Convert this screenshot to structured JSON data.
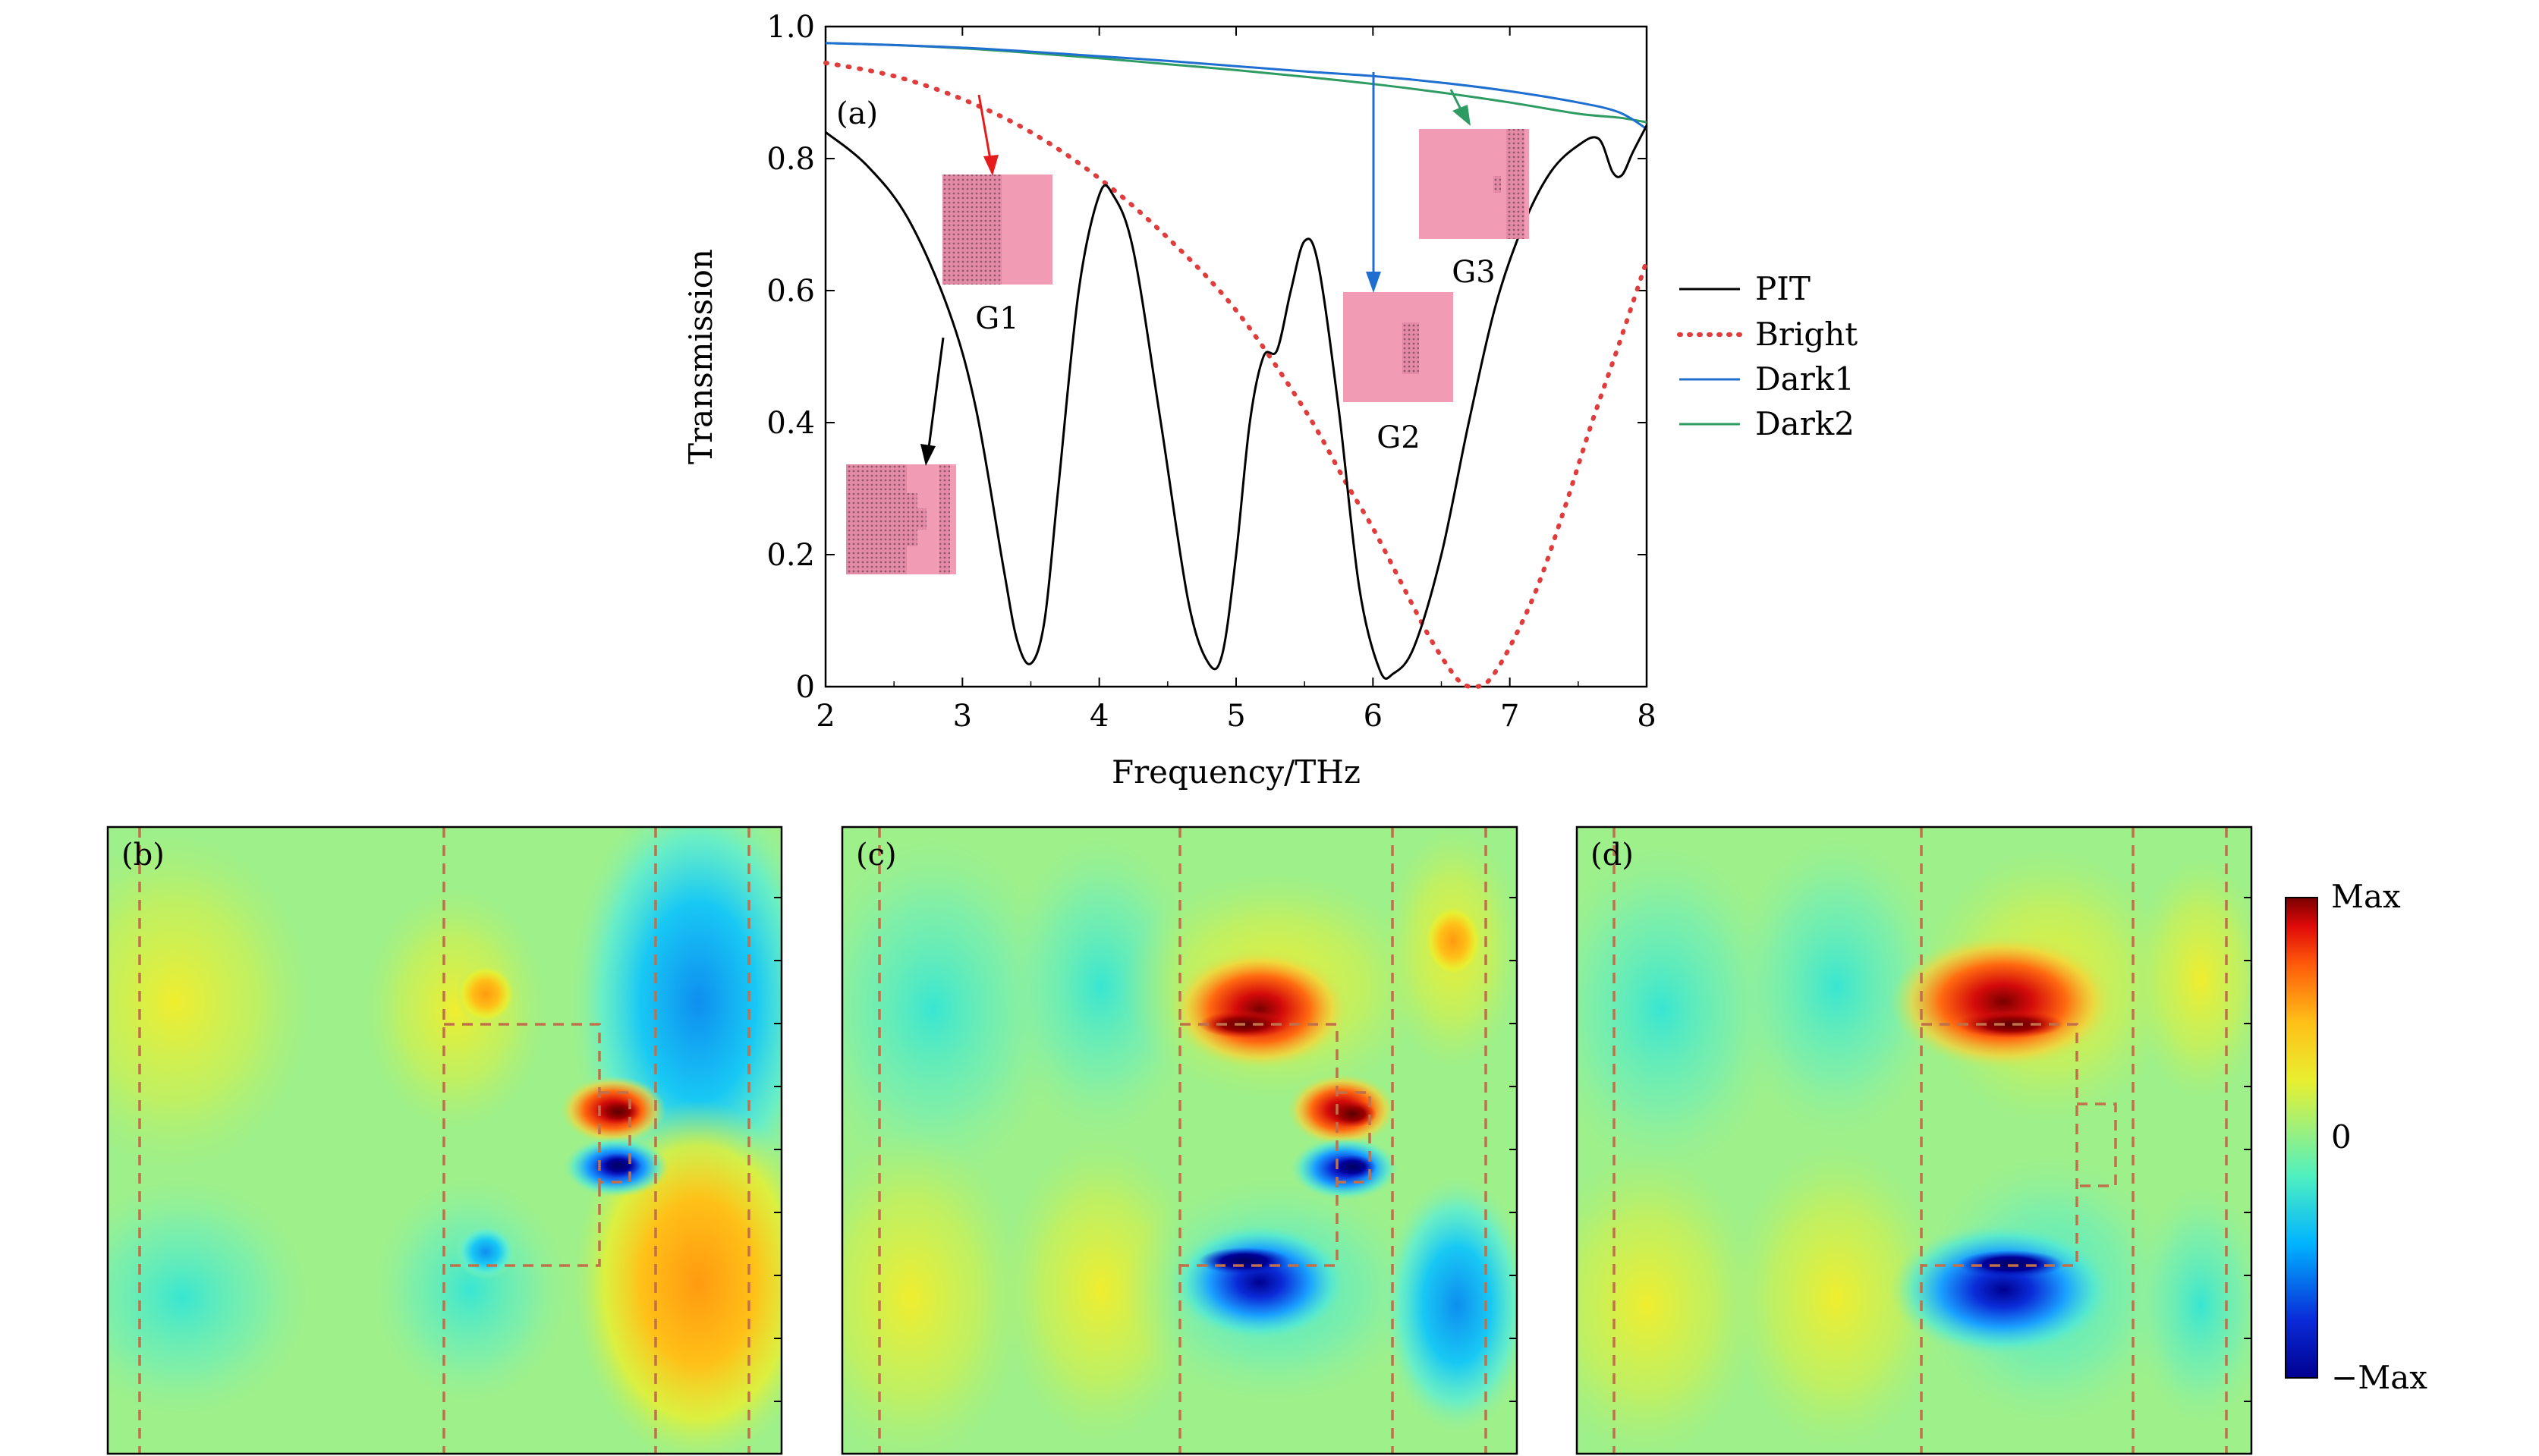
{
  "chart_data": [
    {
      "type": "line",
      "panel_label": "(a)",
      "xlabel": "Frequency/THz",
      "ylabel": "Transmission",
      "xlim": [
        2,
        8
      ],
      "ylim": [
        0,
        1.0
      ],
      "xticks": [
        2,
        3,
        4,
        5,
        6,
        7,
        8
      ],
      "yticks": [
        0,
        0.2,
        0.4,
        0.6,
        0.8,
        1.0
      ],
      "ytick_labels": [
        "0",
        "0.2",
        "0.4",
        "0.6",
        "0.8",
        "1.0"
      ],
      "legend_position": "right-outside",
      "series": [
        {
          "name": "PIT",
          "color": "#000000",
          "style": "solid",
          "points": [
            [
              2.0,
              0.84
            ],
            [
              2.3,
              0.79
            ],
            [
              2.6,
              0.71
            ],
            [
              2.9,
              0.57
            ],
            [
              3.1,
              0.42
            ],
            [
              3.3,
              0.18
            ],
            [
              3.4,
              0.07
            ],
            [
              3.5,
              0.035
            ],
            [
              3.6,
              0.1
            ],
            [
              3.7,
              0.3
            ],
            [
              3.85,
              0.6
            ],
            [
              4.0,
              0.745
            ],
            [
              4.1,
              0.745
            ],
            [
              4.25,
              0.66
            ],
            [
              4.45,
              0.4
            ],
            [
              4.65,
              0.13
            ],
            [
              4.8,
              0.035
            ],
            [
              4.9,
              0.05
            ],
            [
              5.0,
              0.2
            ],
            [
              5.1,
              0.4
            ],
            [
              5.2,
              0.5
            ],
            [
              5.3,
              0.51
            ],
            [
              5.4,
              0.6
            ],
            [
              5.5,
              0.675
            ],
            [
              5.6,
              0.64
            ],
            [
              5.75,
              0.42
            ],
            [
              5.9,
              0.15
            ],
            [
              6.05,
              0.025
            ],
            [
              6.15,
              0.02
            ],
            [
              6.3,
              0.06
            ],
            [
              6.5,
              0.2
            ],
            [
              6.7,
              0.4
            ],
            [
              6.9,
              0.58
            ],
            [
              7.1,
              0.7
            ],
            [
              7.3,
              0.78
            ],
            [
              7.5,
              0.82
            ],
            [
              7.65,
              0.83
            ],
            [
              7.75,
              0.78
            ],
            [
              7.82,
              0.775
            ],
            [
              7.9,
              0.81
            ],
            [
              8.0,
              0.85
            ]
          ]
        },
        {
          "name": "Bright",
          "color": "#e03c3c",
          "style": "dotted",
          "points": [
            [
              2.0,
              0.945
            ],
            [
              2.5,
              0.925
            ],
            [
              3.0,
              0.89
            ],
            [
              3.5,
              0.84
            ],
            [
              4.0,
              0.77
            ],
            [
              4.5,
              0.68
            ],
            [
              5.0,
              0.57
            ],
            [
              5.5,
              0.42
            ],
            [
              5.8,
              0.31
            ],
            [
              6.0,
              0.24
            ],
            [
              6.2,
              0.16
            ],
            [
              6.4,
              0.08
            ],
            [
              6.55,
              0.03
            ],
            [
              6.65,
              0.005
            ],
            [
              6.75,
              0.0
            ],
            [
              6.85,
              0.01
            ],
            [
              7.0,
              0.06
            ],
            [
              7.2,
              0.15
            ],
            [
              7.4,
              0.27
            ],
            [
              7.6,
              0.4
            ],
            [
              7.8,
              0.52
            ],
            [
              8.0,
              0.645
            ]
          ]
        },
        {
          "name": "Dark1",
          "color": "#1f6fd1",
          "style": "solid",
          "points": [
            [
              2.0,
              0.975
            ],
            [
              2.5,
              0.972
            ],
            [
              3.0,
              0.968
            ],
            [
              3.5,
              0.962
            ],
            [
              4.0,
              0.955
            ],
            [
              4.5,
              0.948
            ],
            [
              5.0,
              0.94
            ],
            [
              5.5,
              0.932
            ],
            [
              6.0,
              0.925
            ],
            [
              6.5,
              0.915
            ],
            [
              7.0,
              0.902
            ],
            [
              7.5,
              0.885
            ],
            [
              7.8,
              0.87
            ],
            [
              8.0,
              0.845
            ]
          ]
        },
        {
          "name": "Dark2",
          "color": "#2e9b62",
          "style": "solid",
          "points": [
            [
              2.0,
              0.975
            ],
            [
              2.5,
              0.972
            ],
            [
              3.0,
              0.967
            ],
            [
              3.5,
              0.96
            ],
            [
              4.0,
              0.952
            ],
            [
              4.5,
              0.943
            ],
            [
              5.0,
              0.934
            ],
            [
              5.5,
              0.924
            ],
            [
              6.0,
              0.913
            ],
            [
              6.5,
              0.9
            ],
            [
              7.0,
              0.885
            ],
            [
              7.5,
              0.868
            ],
            [
              7.8,
              0.862
            ],
            [
              8.0,
              0.855
            ]
          ]
        }
      ],
      "insets": [
        {
          "label": "G1",
          "color": "#f29bb5"
        },
        {
          "label": "G2",
          "color": "#f29bb5"
        },
        {
          "label": "G3",
          "color": "#f29bb5"
        },
        {
          "label": "",
          "color": "#f29bb5"
        }
      ],
      "annotation_arrows": [
        {
          "color": "#e61c1c",
          "target": "G1"
        },
        {
          "color": "#1f6fd1",
          "target": "G2"
        },
        {
          "color": "#2e9b62",
          "target": "G3"
        },
        {
          "color": "#000000",
          "target": "PIT"
        }
      ]
    },
    {
      "type": "heatmap",
      "panel_label": "(b)"
    },
    {
      "type": "heatmap",
      "panel_label": "(c)"
    },
    {
      "type": "heatmap",
      "panel_label": "(d)"
    }
  ],
  "colorbar": {
    "max_label": "Max",
    "zero_label": "0",
    "min_label": "−Max",
    "colors": [
      "#00008f",
      "#0a2bd8",
      "#00b4ff",
      "#4ff0c0",
      "#9ff07a",
      "#e9ef2f",
      "#ffc018",
      "#ff5c0a",
      "#e00a0a",
      "#7a0000"
    ]
  }
}
